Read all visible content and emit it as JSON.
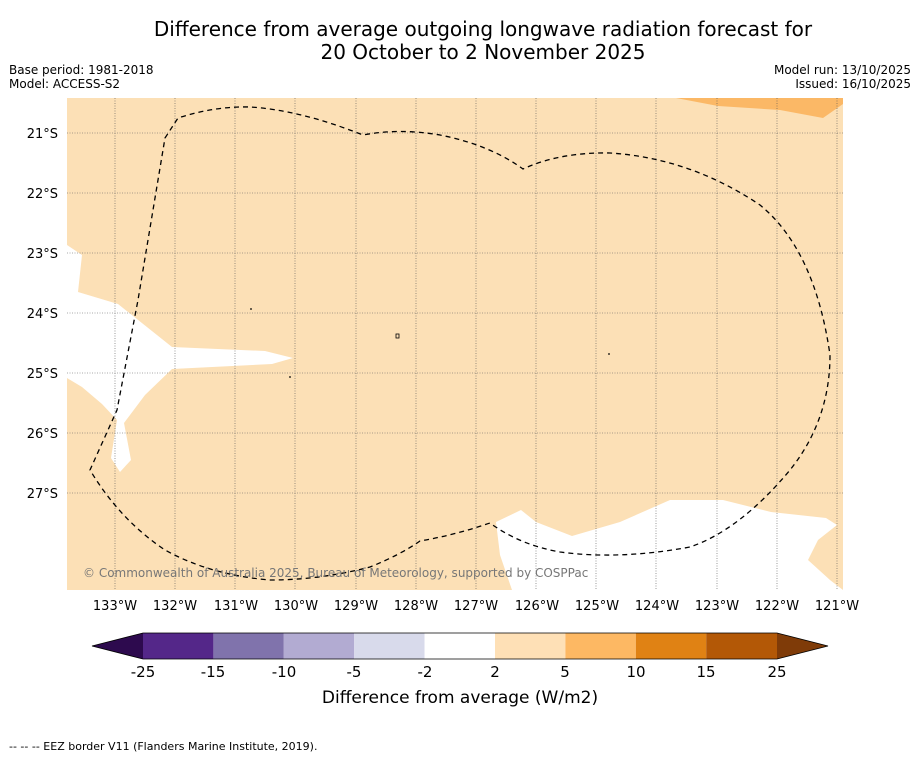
{
  "title": {
    "line1": "Difference from average outgoing longwave radiation forecast for",
    "line2": "20 October to 2 November 2025"
  },
  "meta_left": {
    "base_period": "Base period: 1981-2018",
    "model": "Model: ACCESS-S2"
  },
  "meta_right": {
    "model_run": "Model run: 13/10/2025",
    "issued": "Issued: 16/10/2025"
  },
  "map": {
    "lat_labels": [
      "21°S",
      "22°S",
      "23°S",
      "24°S",
      "25°S",
      "26°S",
      "27°S"
    ],
    "lon_labels": [
      "133°W",
      "132°W",
      "131°W",
      "130°W",
      "129°W",
      "128°W",
      "127°W",
      "126°W",
      "125°W",
      "124°W",
      "123°W",
      "122°W",
      "121°W"
    ],
    "copyright": "© Commonwealth of Australia 2025, Bureau of Meteorology, supported by COSPPac",
    "colors": {
      "background_category": "#fce0b6",
      "neutral_category": "#ffffff",
      "higher_category": "#fbb866",
      "grid": "#555555"
    }
  },
  "colorbar": {
    "label": "Difference from average (W/m2)",
    "ticks": [
      "-25",
      "-15",
      "-10",
      "-5",
      "-2",
      "2",
      "5",
      "10",
      "15",
      "25"
    ],
    "colors": [
      "#2d0a4e",
      "#542789",
      "#8073ac",
      "#b2abd2",
      "#d8daeb",
      "#ffffff",
      "#fee0b6",
      "#fdb863",
      "#e08214",
      "#b35806",
      "#7f3b08"
    ]
  },
  "footnote": "--  --  -- EEZ border V11 (Flanders Marine Institute, 2019)."
}
